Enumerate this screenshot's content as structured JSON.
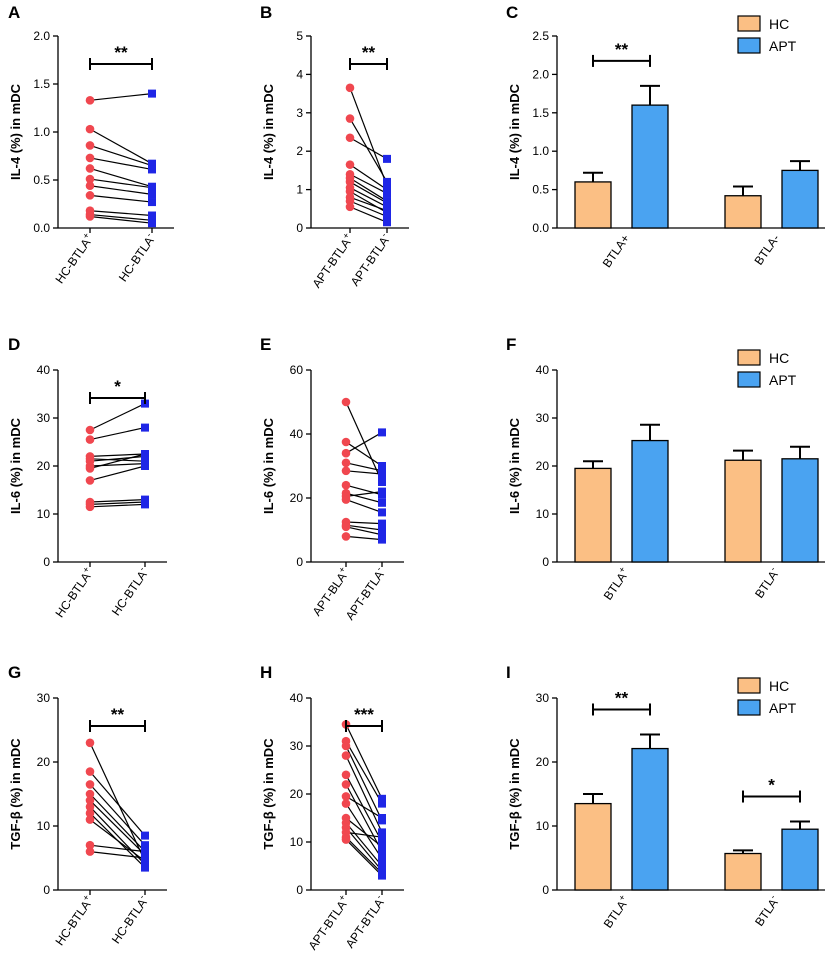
{
  "colors": {
    "hc_point": "#f0474f",
    "apt_point": "#1f26e6",
    "hc_bar": "#fbbf84",
    "apt_bar": "#4aa3f1",
    "axis": "#000000"
  },
  "chart_data": [
    {
      "letter": "A",
      "type": "paired-scatter",
      "ylabel": "IL-4 (%) in mDC",
      "ylim": [
        0,
        2.0
      ],
      "yticks": [
        "0.0",
        "0.5",
        "1.0",
        "1.5",
        "2.0"
      ],
      "categories": [
        {
          "base": "HC-BTLA",
          "sup": "+"
        },
        {
          "base": "HC-BTLA",
          "sup": "-"
        }
      ],
      "pairs": [
        [
          1.33,
          1.4
        ],
        [
          1.03,
          0.67
        ],
        [
          0.86,
          0.65
        ],
        [
          0.73,
          0.61
        ],
        [
          0.62,
          0.43
        ],
        [
          0.51,
          0.42
        ],
        [
          0.44,
          0.35
        ],
        [
          0.34,
          0.27
        ],
        [
          0.18,
          0.13
        ],
        [
          0.14,
          0.08
        ],
        [
          0.12,
          0.05
        ]
      ],
      "significance": "**"
    },
    {
      "letter": "B",
      "type": "paired-scatter",
      "ylabel": "IL-4 (%) in mDC",
      "ylim": [
        0,
        5
      ],
      "yticks": [
        "0",
        "1",
        "2",
        "3",
        "4",
        "5"
      ],
      "categories": [
        {
          "base": "APT-BTLA",
          "sup": "+"
        },
        {
          "base": "APT-BTLA",
          "sup": "-"
        }
      ],
      "pairs": [
        [
          3.65,
          1.1
        ],
        [
          2.85,
          1.2
        ],
        [
          2.35,
          1.8
        ],
        [
          1.65,
          1.0
        ],
        [
          1.4,
          0.9
        ],
        [
          1.3,
          0.7
        ],
        [
          1.2,
          0.65
        ],
        [
          1.05,
          0.55
        ],
        [
          0.95,
          0.4
        ],
        [
          0.8,
          0.45
        ],
        [
          0.7,
          0.3
        ],
        [
          0.55,
          0.15
        ]
      ],
      "significance": "**"
    },
    {
      "letter": "C",
      "type": "bar",
      "ylabel": "IL-4 (%) in mDC",
      "ylim": [
        0,
        2.5
      ],
      "yticks": [
        "0.0",
        "0.5",
        "1.0",
        "1.5",
        "2.0",
        "2.5"
      ],
      "groups": [
        {
          "base": "BTLA+",
          "sup": ""
        },
        {
          "base": "BTLA-",
          "sup": ""
        }
      ],
      "series": [
        {
          "name": "HC",
          "values": [
            0.6,
            0.42
          ],
          "errors": [
            0.12,
            0.12
          ]
        },
        {
          "name": "APT",
          "values": [
            1.6,
            0.75
          ],
          "errors": [
            0.25,
            0.12
          ]
        }
      ],
      "legend": [
        "HC",
        "APT"
      ],
      "significance": [
        {
          "group": 0,
          "label": "**"
        }
      ]
    },
    {
      "letter": "D",
      "type": "paired-scatter",
      "ylabel": "IL-6 (%) in mDC",
      "ylim": [
        0,
        40
      ],
      "yticks": [
        "0",
        "10",
        "20",
        "30",
        "40"
      ],
      "categories": [
        {
          "base": "HC-BTLA",
          "sup": "+"
        },
        {
          "base": "HC-BTLA",
          "sup": "-"
        }
      ],
      "pairs": [
        [
          27.5,
          33.0
        ],
        [
          25.5,
          28.0
        ],
        [
          22.0,
          22.5
        ],
        [
          21.5,
          21.0
        ],
        [
          21.0,
          22.0
        ],
        [
          20.0,
          20.5
        ],
        [
          19.5,
          22.5
        ],
        [
          17.0,
          20.0
        ],
        [
          12.5,
          13.0
        ],
        [
          12.0,
          12.5
        ],
        [
          11.5,
          12.0
        ]
      ],
      "significance": "*"
    },
    {
      "letter": "E",
      "type": "paired-scatter",
      "ylabel": "IL-6 (%) in mDC",
      "ylim": [
        0,
        60
      ],
      "yticks": [
        "0",
        "20",
        "40",
        "60"
      ],
      "categories": [
        {
          "base": "APT-BLA",
          "sup": "+"
        },
        {
          "base": "APT-BTLA",
          "sup": "-"
        }
      ],
      "pairs": [
        [
          50.0,
          25.0
        ],
        [
          37.5,
          30.0
        ],
        [
          34.0,
          40.5
        ],
        [
          31.0,
          28.5
        ],
        [
          28.5,
          27.5
        ],
        [
          24.0,
          21.0
        ],
        [
          21.5,
          18.5
        ],
        [
          20.5,
          22.0
        ],
        [
          19.5,
          15.5
        ],
        [
          12.5,
          12.0
        ],
        [
          11.5,
          10.0
        ],
        [
          11.0,
          8.5
        ],
        [
          8.0,
          7.0
        ]
      ],
      "significance": ""
    },
    {
      "letter": "F",
      "type": "bar",
      "ylabel": "IL-6 (%) in mDC",
      "ylim": [
        0,
        40
      ],
      "yticks": [
        "0",
        "10",
        "20",
        "30",
        "40"
      ],
      "groups": [
        {
          "base": "BTLA",
          "sup": "+"
        },
        {
          "base": "BTLA",
          "sup": "-"
        }
      ],
      "series": [
        {
          "name": "HC",
          "values": [
            19.5,
            21.2
          ],
          "errors": [
            1.5,
            2.0
          ]
        },
        {
          "name": "APT",
          "values": [
            25.3,
            21.5
          ],
          "errors": [
            3.3,
            2.5
          ]
        }
      ],
      "legend": [
        "HC",
        "APT"
      ],
      "significance": []
    },
    {
      "letter": "G",
      "type": "paired-scatter",
      "ylabel": "TGF-β (%) in mDC",
      "ylim": [
        0,
        30
      ],
      "yticks": [
        "0",
        "10",
        "20",
        "30"
      ],
      "categories": [
        {
          "base": "HC-BTLA",
          "sup": "+"
        },
        {
          "base": "HC-BTLA",
          "sup": "-"
        }
      ],
      "pairs": [
        [
          23.0,
          4.5
        ],
        [
          18.5,
          8.5
        ],
        [
          16.5,
          7.0
        ],
        [
          15.0,
          6.0
        ],
        [
          14.0,
          5.5
        ],
        [
          13.0,
          4.0
        ],
        [
          12.0,
          3.5
        ],
        [
          11.0,
          4.5
        ],
        [
          7.0,
          6.0
        ],
        [
          6.0,
          5.0
        ]
      ],
      "significance": "**"
    },
    {
      "letter": "H",
      "type": "paired-scatter",
      "ylabel": "TGF-β (%) in mDC",
      "ylim": [
        0,
        40
      ],
      "yticks": [
        "0",
        "10",
        "20",
        "30",
        "40"
      ],
      "categories": [
        {
          "base": "APT-BTLA",
          "sup": "+"
        },
        {
          "base": "APT-BTLA",
          "sup": "-"
        }
      ],
      "pairs": [
        [
          34.5,
          19.0
        ],
        [
          31.0,
          18.0
        ],
        [
          30.0,
          14.5
        ],
        [
          28.0,
          12.0
        ],
        [
          24.0,
          10.0
        ],
        [
          22.0,
          8.0
        ],
        [
          19.5,
          15.0
        ],
        [
          18.0,
          6.5
        ],
        [
          15.0,
          9.0
        ],
        [
          14.0,
          5.0
        ],
        [
          13.0,
          4.0
        ],
        [
          12.0,
          11.0
        ],
        [
          11.0,
          3.5
        ],
        [
          10.5,
          3.0
        ]
      ],
      "significance": "***"
    },
    {
      "letter": "I",
      "type": "bar",
      "ylabel": "TGF-β (%) in mDC",
      "ylim": [
        0,
        30
      ],
      "yticks": [
        "0",
        "10",
        "20",
        "30"
      ],
      "groups": [
        {
          "base": "BTLA",
          "sup": "+"
        },
        {
          "base": "BTLA",
          "sup": "-"
        }
      ],
      "series": [
        {
          "name": "HC",
          "values": [
            13.5,
            5.7
          ],
          "errors": [
            1.5,
            0.5
          ]
        },
        {
          "name": "APT",
          "values": [
            22.1,
            9.5
          ],
          "errors": [
            2.2,
            1.2
          ]
        }
      ],
      "legend": [
        "HC",
        "APT"
      ],
      "significance": [
        {
          "group": 0,
          "label": "**"
        },
        {
          "group": 1,
          "label": "*"
        }
      ]
    }
  ]
}
